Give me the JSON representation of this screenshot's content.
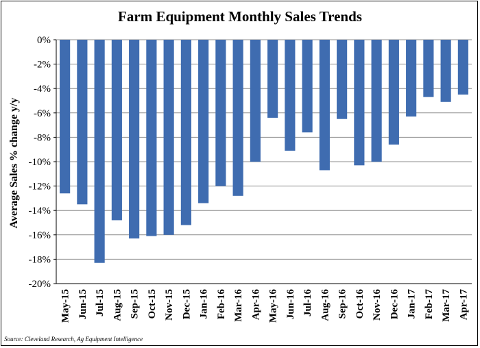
{
  "chart_data": {
    "type": "bar",
    "title": "Farm Equipment Monthly Sales Trends",
    "xlabel": "",
    "ylabel": "Average Sales % change y/y",
    "ylim": [
      -20,
      0
    ],
    "yticks": [
      0,
      -2,
      -4,
      -6,
      -8,
      -10,
      -12,
      -14,
      -16,
      -18,
      -20
    ],
    "ytick_labels": [
      "0%",
      "-2%",
      "-4%",
      "-6%",
      "-8%",
      "-10%",
      "-12%",
      "-14%",
      "-16%",
      "-18%",
      "-20%"
    ],
    "grid": true,
    "bar_color": "#3F6CB0",
    "categories": [
      "May-15",
      "Jun-15",
      "Jul-15",
      "Aug-15",
      "Sep-15",
      "Oct-15",
      "Nov-15",
      "Dec-15",
      "Jan-16",
      "Feb-16",
      "Mar-16",
      "Apr-16",
      "May-16",
      "Jun-16",
      "Jul-16",
      "Aug-16",
      "Sep-16",
      "Oct-16",
      "Nov-16",
      "Dec-16",
      "Jan-17",
      "Feb-17",
      "Mar-17",
      "Apr-17"
    ],
    "values": [
      -12.6,
      -13.5,
      -18.3,
      -14.8,
      -16.3,
      -16.1,
      -16.0,
      -15.2,
      -13.4,
      -12.0,
      -12.8,
      -10.0,
      -6.4,
      -9.1,
      -7.6,
      -10.7,
      -6.5,
      -10.3,
      -10.0,
      -8.6,
      -6.3,
      -4.7,
      -5.1,
      -4.5
    ],
    "source": "Source: Cleveland Research, Ag Equipment Intelligence"
  }
}
